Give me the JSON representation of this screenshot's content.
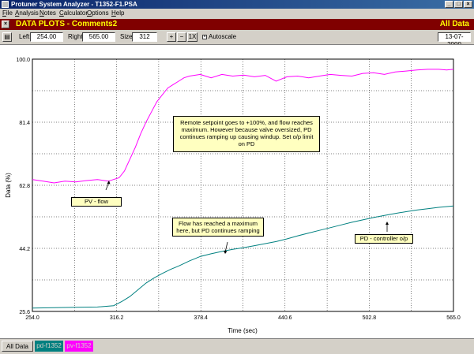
{
  "window": {
    "title": "Protuner System Analyzer - T1352-F1.PSA",
    "min": "_",
    "max": "□",
    "close": "×"
  },
  "menu": [
    {
      "first": "F",
      "rest": "ile"
    },
    {
      "first": "A",
      "rest": "nalysis"
    },
    {
      "first": "N",
      "rest": "otes"
    },
    {
      "first": "C",
      "rest": "alculator"
    },
    {
      "first": "O",
      "rest": "ptions"
    },
    {
      "first": "H",
      "rest": "elp"
    }
  ],
  "header": {
    "close": "×",
    "title": "DATA PLOTS - Comments2",
    "view": "All Data"
  },
  "toolbar": {
    "left_label": "Left",
    "left_value": "254.00",
    "right_label": "Right",
    "right_value": "565.00",
    "size_label": "Size",
    "size_value": "312",
    "zoom_in": "+",
    "zoom_out": "−",
    "zoom_1x": "1X",
    "autoscale_label": "Autoscale",
    "autoscale_checked": "×",
    "date": "13-07-2000"
  },
  "chart_data": {
    "type": "line",
    "ylabel": "Data (%)",
    "xlabel": "Time (sec)",
    "xlim": [
      254.0,
      565.0
    ],
    "ylim": [
      25.6,
      100.0
    ],
    "x_ticks": [
      "254.0",
      "316.2",
      "378.4",
      "440.6",
      "502.8",
      "565.0"
    ],
    "y_ticks": [
      "25.6",
      "44.2",
      "62.8",
      "81.4",
      "100.0"
    ],
    "grid": true,
    "colors": {
      "pv": "#ff00ff",
      "pd": "#008080"
    },
    "series": [
      {
        "name": "pv-f1352",
        "x": [
          254,
          262,
          270,
          278,
          286,
          294,
          302,
          310,
          318,
          322,
          326,
          330,
          334,
          338,
          342,
          346,
          350,
          354,
          358,
          362,
          366,
          370,
          378,
          386,
          394,
          402,
          410,
          418,
          426,
          434,
          442,
          450,
          458,
          466,
          474,
          482,
          490,
          498,
          506,
          514,
          522,
          530,
          538,
          546,
          554,
          560,
          565
        ],
        "y": [
          64.5,
          64.0,
          63.5,
          64.0,
          63.8,
          64.2,
          64.5,
          64.0,
          65.0,
          67.0,
          70.5,
          74.0,
          78.0,
          81.5,
          84.5,
          87.5,
          89.5,
          91.5,
          92.5,
          93.5,
          94.5,
          95.0,
          95.5,
          94.5,
          95.5,
          95.0,
          95.3,
          94.8,
          95.2,
          93.5,
          94.8,
          95.0,
          94.5,
          95.0,
          95.5,
          95.2,
          95.0,
          95.8,
          96.0,
          95.5,
          96.2,
          96.5,
          96.8,
          97.0,
          97.0,
          96.8,
          97.0
        ]
      },
      {
        "name": "pd-f1352",
        "x": [
          254,
          270,
          286,
          302,
          314,
          320,
          326,
          332,
          338,
          344,
          350,
          356,
          362,
          370,
          378,
          386,
          394,
          402,
          410,
          418,
          426,
          434,
          442,
          450,
          458,
          466,
          474,
          482,
          490,
          498,
          506,
          514,
          522,
          530,
          538,
          546,
          554,
          565
        ],
        "y": [
          26.6,
          26.7,
          26.8,
          26.9,
          27.3,
          28.5,
          30.0,
          32.0,
          34.0,
          35.5,
          36.8,
          38.0,
          39.0,
          40.5,
          41.8,
          42.6,
          43.3,
          43.9,
          44.4,
          45.0,
          45.6,
          46.2,
          47.0,
          47.9,
          48.7,
          49.5,
          50.3,
          51.1,
          51.9,
          52.6,
          53.3,
          53.9,
          54.5,
          55.0,
          55.5,
          55.9,
          56.3,
          56.7
        ]
      }
    ],
    "annotations": [
      {
        "lines": [
          "Remote setpoint goes to +100%, and flow reaches",
          "maximum.  However because valve oversized, PD",
          "continues ramping up causing windup.  Set o/p limit",
          "on PD"
        ]
      },
      {
        "lines": [
          "PV - flow"
        ]
      },
      {
        "lines": [
          "Flow has reached a maximum",
          "here, but PD continues ramping"
        ]
      },
      {
        "lines": [
          "PD - controller o/p"
        ]
      }
    ]
  },
  "tabs": [
    "All Data",
    "pd-f1352",
    "pv-f1352"
  ]
}
